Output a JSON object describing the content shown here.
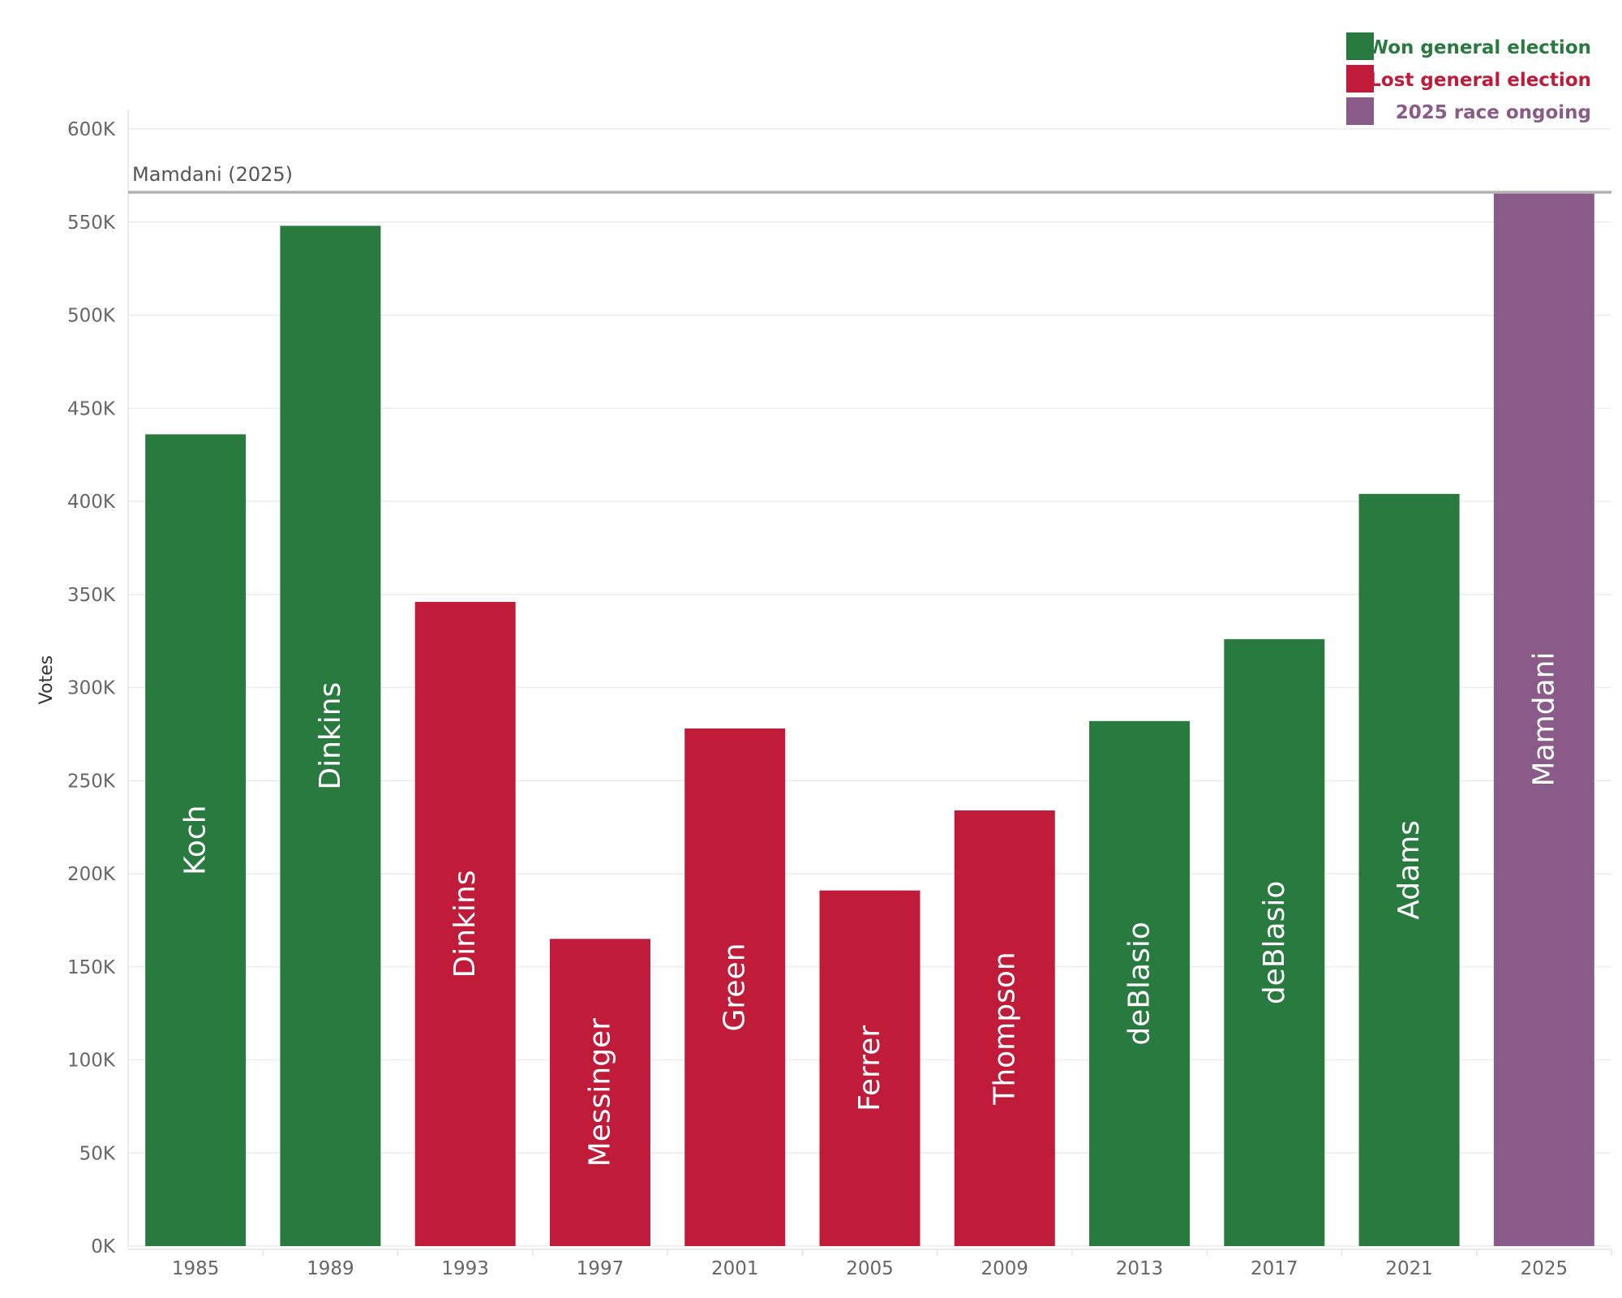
{
  "chart_data": {
    "type": "bar",
    "ylabel": "Votes",
    "ylim": [
      0,
      600000
    ],
    "yticks": [
      0,
      50000,
      100000,
      150000,
      200000,
      250000,
      300000,
      350000,
      400000,
      450000,
      500000,
      550000,
      600000
    ],
    "ytick_labels": [
      "0K",
      "50K",
      "100K",
      "150K",
      "200K",
      "250K",
      "300K",
      "350K",
      "400K",
      "450K",
      "500K",
      "550K",
      "600K"
    ],
    "categories": [
      "1985",
      "1989",
      "1993",
      "1997",
      "2001",
      "2005",
      "2009",
      "2013",
      "2017",
      "2021",
      "2025"
    ],
    "bars": [
      {
        "year": "1985",
        "candidate": "Koch",
        "value": 436000,
        "outcome": "won"
      },
      {
        "year": "1989",
        "candidate": "Dinkins",
        "value": 548000,
        "outcome": "won"
      },
      {
        "year": "1993",
        "candidate": "Dinkins",
        "value": 346000,
        "outcome": "lost"
      },
      {
        "year": "1997",
        "candidate": "Messinger",
        "value": 165000,
        "outcome": "lost"
      },
      {
        "year": "2001",
        "candidate": "Green",
        "value": 278000,
        "outcome": "lost"
      },
      {
        "year": "2005",
        "candidate": "Ferrer",
        "value": 191000,
        "outcome": "lost"
      },
      {
        "year": "2009",
        "candidate": "Thompson",
        "value": 234000,
        "outcome": "lost"
      },
      {
        "year": "2013",
        "candidate": "deBlasio",
        "value": 282000,
        "outcome": "won"
      },
      {
        "year": "2017",
        "candidate": "deBlasio",
        "value": 326000,
        "outcome": "won"
      },
      {
        "year": "2021",
        "candidate": "Adams",
        "value": 404000,
        "outcome": "won"
      },
      {
        "year": "2025",
        "candidate": "Mamdani",
        "value": 566000,
        "outcome": "ongoing"
      }
    ],
    "reference_line": {
      "label": "Mamdani (2025)",
      "value": 566000
    },
    "legend": {
      "placement": "top-right",
      "entries": [
        {
          "key": "won",
          "label": "Won general election",
          "color": "#287a3e"
        },
        {
          "key": "lost",
          "label": "Lost general election",
          "color": "#c11b3a"
        },
        {
          "key": "ongoing",
          "label": "2025 race ongoing",
          "color": "#8a5a88"
        }
      ]
    },
    "grid": true
  }
}
